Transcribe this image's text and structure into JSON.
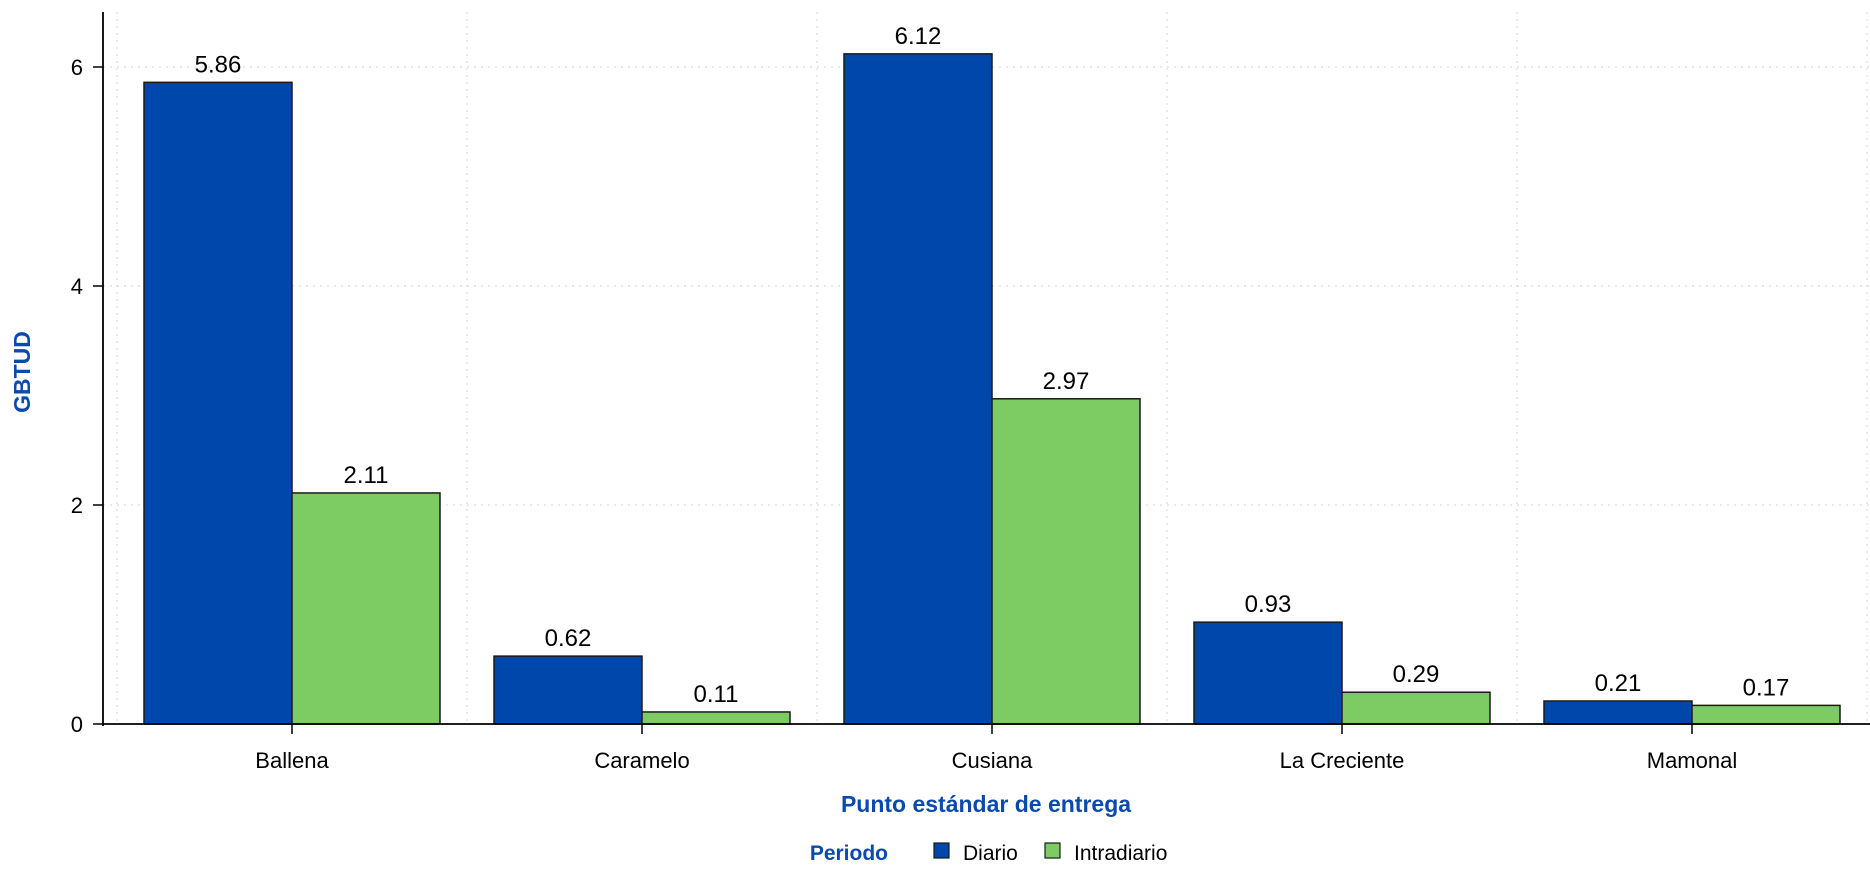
{
  "chart_data": {
    "type": "bar",
    "title": "",
    "xlabel": "Punto estándar de entrega",
    "ylabel": "GBTUD",
    "categories": [
      "Ballena",
      "Caramelo",
      "Cusiana",
      "La Creciente",
      "Mamonal"
    ],
    "series": [
      {
        "name": "Diario",
        "values": [
          5.86,
          0.62,
          6.12,
          0.93,
          0.21
        ],
        "color": "#0047ab"
      },
      {
        "name": "Intradiario",
        "values": [
          2.11,
          0.11,
          2.97,
          0.29,
          0.17
        ],
        "color": "#7ccc63"
      }
    ],
    "data_labels": [
      [
        "5.86",
        "0.62",
        "6.12",
        "0.93",
        "0.21"
      ],
      [
        "2.11",
        "0.11",
        "2.97",
        "0.29",
        "0.17"
      ]
    ],
    "yticks": [
      0,
      2,
      4,
      6
    ],
    "ytick_labels": [
      "0",
      "2",
      "4",
      "6"
    ],
    "ylim": [
      0,
      6.5
    ],
    "grid": true,
    "legend": {
      "title": "Periodo",
      "position": "bottom"
    }
  }
}
